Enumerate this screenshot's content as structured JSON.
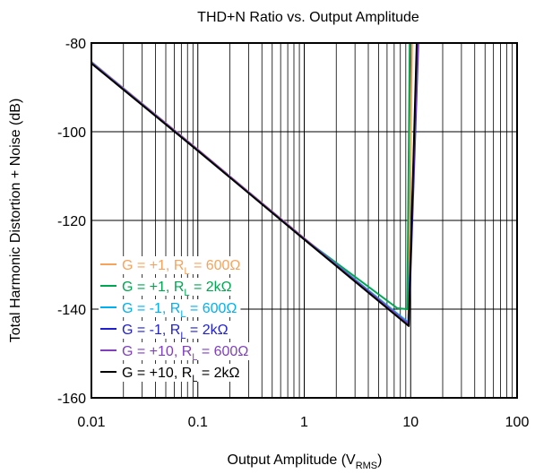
{
  "chart_data": {
    "type": "line",
    "title": "THD+N Ratio vs. Output Amplitude",
    "xlabel": {
      "main": "Output Amplitude (V",
      "sub": "RMS",
      "end": ")"
    },
    "ylabel": "Total Harmonic Distortion + Noise (dB)",
    "x_scale": "log",
    "xlim": [
      0.01,
      100
    ],
    "ylim": [
      -160,
      -80
    ],
    "x_ticks": [
      {
        "value": 0.01,
        "label": "0.01"
      },
      {
        "value": 0.1,
        "label": "0.1"
      },
      {
        "value": 1,
        "label": "1"
      },
      {
        "value": 10,
        "label": "10"
      },
      {
        "value": 100,
        "label": "100"
      }
    ],
    "y_ticks": [
      {
        "value": -80,
        "label": "-80"
      },
      {
        "value": -100,
        "label": "-100"
      },
      {
        "value": -120,
        "label": "-120"
      },
      {
        "value": -140,
        "label": "-140"
      },
      {
        "value": -160,
        "label": "-160"
      }
    ],
    "grid": true,
    "legend_position": "bottom-left",
    "series": [
      {
        "name": "G = +1, R",
        "name_sub": "L",
        "name_end": " = 600Ω",
        "color": "#F7A35C",
        "points": [
          [
            0.01,
            -84.2
          ],
          [
            0.1,
            -104.0
          ],
          [
            1,
            -124.0
          ],
          [
            9.5,
            -143.2
          ],
          [
            10.3,
            -80
          ]
        ]
      },
      {
        "name": "G = +1, R",
        "name_sub": "L",
        "name_end": " = 2kΩ",
        "color": "#00A651",
        "points": [
          [
            0.01,
            -84.5
          ],
          [
            0.1,
            -104.2
          ],
          [
            1,
            -124.2
          ],
          [
            7.5,
            -139.8
          ],
          [
            9.3,
            -140.0
          ],
          [
            9.8,
            -80
          ]
        ]
      },
      {
        "name": "G = -1, R",
        "name_sub": "L",
        "name_end": " = 600Ω",
        "color": "#00B0F0",
        "points": [
          [
            0.01,
            -84.3
          ],
          [
            0.1,
            -104.1
          ],
          [
            1,
            -124.1
          ],
          [
            9.5,
            -143.0
          ],
          [
            11.6,
            -80
          ]
        ]
      },
      {
        "name": "G = -1, R",
        "name_sub": "L",
        "name_end": " = 2kΩ",
        "color": "#1F1FCF",
        "points": [
          [
            0.01,
            -84.5
          ],
          [
            0.1,
            -104.2
          ],
          [
            1,
            -124.2
          ],
          [
            9.6,
            -143.6
          ],
          [
            11.8,
            -80
          ]
        ]
      },
      {
        "name": "G = +10, R",
        "name_sub": "L",
        "name_end": " = 600Ω",
        "color": "#7F3FBF",
        "points": [
          [
            0.01,
            -84.4
          ],
          [
            0.1,
            -104.1
          ],
          [
            1,
            -124.1
          ],
          [
            9.5,
            -143.3
          ],
          [
            11.7,
            -80
          ]
        ]
      },
      {
        "name": "G = +10, R",
        "name_sub": "L",
        "name_end": " = 2kΩ",
        "color": "#000000",
        "points": [
          [
            0.01,
            -84.6
          ],
          [
            0.1,
            -104.3
          ],
          [
            1,
            -124.3
          ],
          [
            9.6,
            -143.8
          ],
          [
            11.4,
            -80
          ]
        ]
      }
    ]
  }
}
